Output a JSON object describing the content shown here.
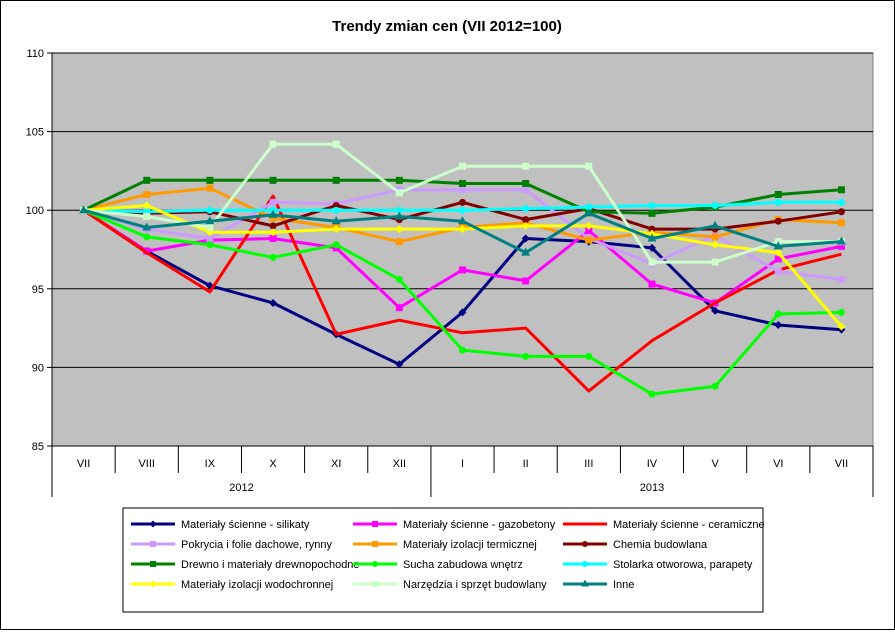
{
  "chart_data": {
    "type": "line",
    "title": "Trendy zmian cen (VII 2012=100)",
    "xlabel": "",
    "ylabel": "",
    "categories": [
      "VII",
      "VIII",
      "IX",
      "X",
      "XI",
      "XII",
      "I",
      "II",
      "III",
      "IV",
      "V",
      "VI",
      "VII"
    ],
    "year_groups": [
      {
        "label": "2012",
        "from": 0,
        "to": 5
      },
      {
        "label": "2013",
        "from": 6,
        "to": 12
      }
    ],
    "ylim": [
      85,
      110
    ],
    "yticks": [
      85,
      90,
      95,
      100,
      105,
      110
    ],
    "grid": true,
    "plot_background": "#c0c0c0",
    "legend_position": "bottom",
    "series": [
      {
        "name": "Materiały ścienne - silikaty",
        "color": "#000080",
        "marker": "diamond",
        "values": [
          100,
          97.4,
          95.2,
          94.1,
          92.1,
          90.2,
          93.5,
          98.2,
          98.0,
          97.6,
          93.6,
          92.7,
          92.4
        ]
      },
      {
        "name": "Materiały ścienne - gazobetony",
        "color": "#ff00ff",
        "marker": "square",
        "values": [
          100,
          97.4,
          98.1,
          98.2,
          97.6,
          93.8,
          96.2,
          95.5,
          98.7,
          95.3,
          94.1,
          96.9,
          97.7
        ]
      },
      {
        "name": "Materiały ścienne - ceramiczne",
        "color": "#ff0000",
        "marker": "none",
        "values": [
          100,
          97.3,
          94.8,
          100.9,
          92.1,
          93.0,
          92.2,
          92.5,
          88.5,
          91.7,
          94.1,
          96.2,
          97.2
        ]
      },
      {
        "name": "Pokrycia i folie dachowe, rynny",
        "color": "#cc99ff",
        "marker": "square",
        "values": [
          100,
          98.8,
          98.2,
          100.5,
          100.4,
          101.3,
          101.3,
          101.3,
          98.2,
          96.6,
          98.4,
          96.1,
          95.6
        ]
      },
      {
        "name": "Materiały izolacji termicznej",
        "color": "#ff9900",
        "marker": "square",
        "values": [
          100,
          101.0,
          101.4,
          99.5,
          98.9,
          98.0,
          98.9,
          99.2,
          98.1,
          98.6,
          98.3,
          99.4,
          99.2
        ]
      },
      {
        "name": "Chemia budowlana",
        "color": "#800000",
        "marker": "circle",
        "values": [
          100,
          99.8,
          99.9,
          99.0,
          100.3,
          99.4,
          100.5,
          99.4,
          100.1,
          98.8,
          98.8,
          99.3,
          99.9
        ]
      },
      {
        "name": "Drewno i materiały drewnopochodne",
        "color": "#008000",
        "marker": "square",
        "values": [
          100,
          101.9,
          101.9,
          101.9,
          101.9,
          101.9,
          101.7,
          101.7,
          99.9,
          99.8,
          100.2,
          101.0,
          101.3
        ]
      },
      {
        "name": "Sucha zabudowa wnętrz",
        "color": "#00ff00",
        "marker": "circle",
        "values": [
          100,
          98.3,
          97.8,
          97.0,
          97.8,
          95.6,
          91.1,
          90.7,
          90.7,
          88.3,
          88.8,
          93.4,
          93.5
        ]
      },
      {
        "name": "Stolarka otworowa, parapety",
        "color": "#00ffff",
        "marker": "circle",
        "values": [
          100,
          99.9,
          100.0,
          100.0,
          100.0,
          100.0,
          100.0,
          100.1,
          100.2,
          100.3,
          100.3,
          100.5,
          100.5
        ]
      },
      {
        "name": "Materiały izolacji wodochronnej",
        "color": "#ffff00",
        "marker": "diamond",
        "values": [
          100,
          100.3,
          98.6,
          98.6,
          98.8,
          98.8,
          98.8,
          99.0,
          99.0,
          98.5,
          97.8,
          97.3,
          92.6
        ]
      },
      {
        "name": "Narzędzia i sprzęt budowlany",
        "color": "#ccffcc",
        "marker": "square",
        "values": [
          100,
          99.6,
          98.9,
          104.2,
          104.2,
          101.1,
          102.8,
          102.8,
          102.8,
          96.7,
          96.7,
          98.0,
          98.0
        ]
      },
      {
        "name": "Inne",
        "color": "#008080",
        "marker": "triangle",
        "values": [
          100,
          98.9,
          99.3,
          99.7,
          99.3,
          99.6,
          99.3,
          97.3,
          99.8,
          98.2,
          99.0,
          97.7,
          98.0
        ]
      }
    ]
  }
}
